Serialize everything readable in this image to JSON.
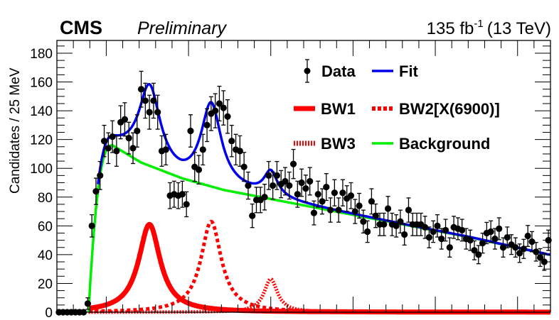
{
  "chart_data": {
    "type": "scatter",
    "experiment_label": "CMS",
    "status_label": "Preliminary",
    "lumi_label": "135 fb",
    "lumi_sup": "-1",
    "energy_label": "(13 TeV)",
    "xlabel": "",
    "ylabel": "Candidates / 25 MeV",
    "ylim": [
      0,
      190
    ],
    "yticks": [
      0,
      20,
      40,
      60,
      80,
      100,
      120,
      140,
      160,
      180
    ],
    "ytick_labels": [
      "0",
      "20",
      "40",
      "60",
      "80",
      "100",
      "120",
      "140",
      "160",
      "180"
    ],
    "nbins": 120,
    "grid": false,
    "legend": {
      "placement": "top-right",
      "entries": [
        {
          "name": "Data",
          "kind": "marker",
          "color": "#000000"
        },
        {
          "name": "Fit",
          "kind": "line",
          "color": "#0000ee"
        },
        {
          "name": "BW1",
          "kind": "thick-line",
          "color": "#ff0000"
        },
        {
          "name": "BW2[X(6900)]",
          "kind": "dashed",
          "color": "#ff0000"
        },
        {
          "name": "BW3",
          "kind": "dotted",
          "color": "#ff0000"
        },
        {
          "name": "Background",
          "kind": "line",
          "color": "#00ee00"
        }
      ]
    },
    "series": [
      {
        "name": "Data",
        "kind": "points",
        "color": "#000000",
        "values": [
          0,
          0,
          0,
          0,
          0,
          0,
          0,
          6,
          60,
          84,
          95,
          119,
          114,
          122,
          112,
          132,
          134,
          121,
          114,
          126,
          155,
          147,
          139,
          147,
          139,
          112,
          113,
          81,
          82,
          81,
          82,
          75,
          126,
          101,
          99,
          113,
          130,
          138,
          140,
          145,
          142,
          136,
          119,
          113,
          112,
          101,
          88,
          67,
          78,
          78,
          80,
          95,
          88,
          95,
          89,
          91,
          88,
          103,
          82,
          90,
          86,
          91,
          69,
          82,
          77,
          87,
          71,
          83,
          71,
          83,
          79,
          81,
          70,
          74,
          63,
          56,
          77,
          67,
          61,
          61,
          72,
          61,
          60,
          63,
          54,
          71,
          61,
          61,
          61,
          59,
          52,
          56,
          60,
          51,
          57,
          45,
          59,
          58,
          57,
          51,
          50,
          43,
          40,
          48,
          55,
          56,
          51,
          58,
          45,
          52,
          47,
          45,
          41,
          44,
          53,
          49,
          42,
          38,
          35,
          50
        ],
        "errors": 8
      },
      {
        "name": "Fit",
        "kind": "curve",
        "color": "#0000ee"
      },
      {
        "name": "Background",
        "kind": "curve",
        "color": "#00ee00"
      },
      {
        "name": "BW1",
        "kind": "curve",
        "color": "#ff0000",
        "peak_bin": 22,
        "peak_value": 61,
        "width_bins": 3.2
      },
      {
        "name": "BW2[X(6900)]",
        "kind": "curve",
        "color": "#ff0000",
        "peak_bin": 37,
        "peak_value": 63,
        "width_bins": 3.0
      },
      {
        "name": "BW3",
        "kind": "curve",
        "color": "#ff0000",
        "peak_bin": 51.5,
        "peak_value": 23,
        "width_bins": 2.0
      }
    ],
    "background_model": {
      "onset_bin": 7.2,
      "peak_bin": 13,
      "peak_value": 116,
      "tail": [
        [
          13,
          116
        ],
        [
          20,
          104
        ],
        [
          30,
          93
        ],
        [
          40,
          85
        ],
        [
          60,
          74
        ],
        [
          80,
          63
        ],
        [
          100,
          52
        ],
        [
          119,
          40
        ]
      ]
    }
  }
}
